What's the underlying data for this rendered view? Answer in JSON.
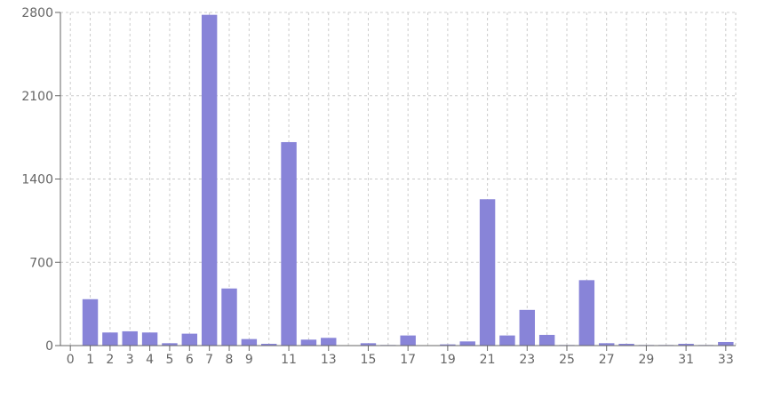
{
  "chart_data": {
    "type": "bar",
    "title": "",
    "xlabel": "",
    "ylabel": "",
    "x": [
      0,
      1,
      2,
      3,
      4,
      5,
      6,
      7,
      8,
      9,
      10,
      11,
      12,
      13,
      14,
      15,
      16,
      17,
      18,
      19,
      20,
      21,
      22,
      23,
      24,
      25,
      26,
      27,
      28,
      29,
      30,
      31,
      32,
      33
    ],
    "values": [
      0,
      390,
      110,
      120,
      110,
      20,
      100,
      2780,
      480,
      55,
      15,
      1710,
      50,
      65,
      0,
      20,
      5,
      85,
      0,
      10,
      35,
      1230,
      85,
      300,
      90,
      5,
      550,
      20,
      15,
      5,
      5,
      15,
      5,
      30
    ],
    "x_tick_labels": [
      "0",
      "1",
      "2",
      "3",
      "4",
      "5",
      "6",
      "7",
      "8",
      "9",
      "11",
      "13",
      "15",
      "17",
      "19",
      "21",
      "23",
      "25",
      "27",
      "29",
      "31",
      "33"
    ],
    "y_tick_labels": [
      "0",
      "700",
      "1400",
      "2100",
      "2800"
    ],
    "ylim": [
      0,
      2800
    ],
    "grid": true,
    "bar_color": "#8884d8",
    "grid_color": "#cccccc",
    "axis_color": "#666666"
  }
}
